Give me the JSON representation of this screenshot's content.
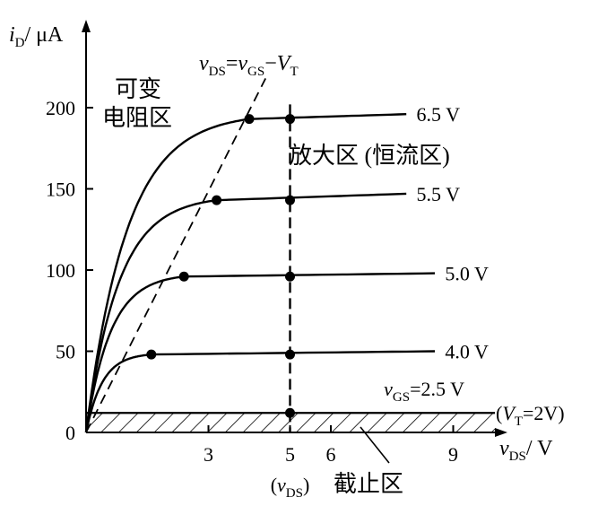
{
  "chart_data": {
    "type": "line",
    "title": "",
    "xlabel": {
      "var": "v",
      "sub": "DS",
      "unit": "/ V"
    },
    "ylabel": {
      "var": "i",
      "sub": "D",
      "unit": "/ μA"
    },
    "xlim": [
      0,
      11
    ],
    "ylim": [
      0,
      210
    ],
    "x_ticks": [
      3,
      5,
      6,
      9
    ],
    "y_ticks": [
      0,
      50,
      100,
      150,
      200
    ],
    "grid": false,
    "series": [
      {
        "name": "6.5 V",
        "sat_x": 4,
        "sat_y": 193,
        "end_y": 196,
        "label_pos": [
          8.1,
          196
        ]
      },
      {
        "name": "5.5 V",
        "sat_x": 3.2,
        "sat_y": 143,
        "end_y": 147,
        "label_pos": [
          8.1,
          147
        ]
      },
      {
        "name": "5.0 V",
        "sat_x": 2.4,
        "sat_y": 96,
        "end_y": 98,
        "label_pos": [
          8.8,
          98
        ]
      },
      {
        "name": "4.0 V",
        "sat_x": 1.6,
        "sat_y": 48,
        "end_y": 50,
        "label_pos": [
          8.8,
          50
        ]
      },
      {
        "name": "2.5 V",
        "sat_x": 0.8,
        "sat_y": 12,
        "end_y": 12,
        "label_pos": [
          7.3,
          27
        ],
        "prefix": {
          "var": "v",
          "sub": "GS",
          "eq": "="
        }
      }
    ],
    "operating_points": [
      {
        "x": 4,
        "y": 193
      },
      {
        "x": 5,
        "y": 193
      },
      {
        "x": 3.2,
        "y": 143
      },
      {
        "x": 5,
        "y": 143
      },
      {
        "x": 2.4,
        "y": 96
      },
      {
        "x": 5,
        "y": 96
      },
      {
        "x": 1.6,
        "y": 48
      },
      {
        "x": 5,
        "y": 48
      },
      {
        "x": 5,
        "y": 12
      }
    ],
    "boundary_line": {
      "label": {
        "v1": "v",
        "s1": "DS",
        "v2": "v",
        "s2": "GS",
        "v3": "V",
        "s3": "T"
      },
      "from": [
        0,
        0
      ],
      "to": [
        4.4,
        218
      ]
    },
    "vds_marker": {
      "x": 5,
      "label_var": "v",
      "label_sub": "DS"
    },
    "cutoff": {
      "y_top": 12,
      "vt_label": {
        "var": "V",
        "sub": "T",
        "value": "=2V"
      }
    },
    "regions": {
      "variable_resistance_line1": "可变",
      "variable_resistance_line2": "电阻区",
      "saturation": "放大区 (恒流区)",
      "cutoff": "截止区"
    }
  }
}
